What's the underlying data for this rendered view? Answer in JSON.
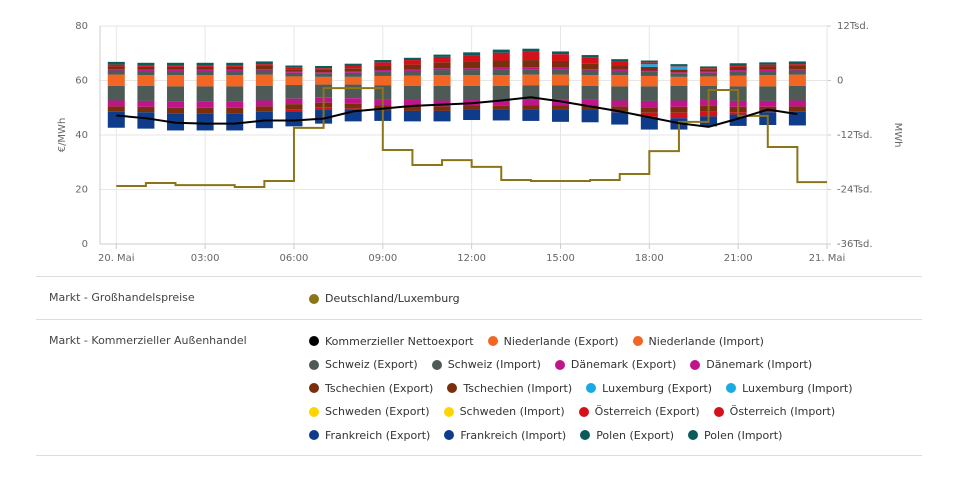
{
  "chart_data": {
    "type": "bar",
    "x": [
      0,
      1,
      2,
      3,
      4,
      5,
      6,
      7,
      8,
      9,
      10,
      11,
      12,
      13,
      14,
      15,
      16,
      17,
      18,
      19,
      20,
      21,
      22,
      23
    ],
    "xlim": [
      -0.55,
      24
    ],
    "xticks": [
      {
        "value": 0,
        "label": "20. Mai"
      },
      {
        "value": 3,
        "label": "03:00"
      },
      {
        "value": 6,
        "label": "06:00"
      },
      {
        "value": 9,
        "label": "09:00"
      },
      {
        "value": 12,
        "label": "12:00"
      },
      {
        "value": 15,
        "label": "15:00"
      },
      {
        "value": 18,
        "label": "18:00"
      },
      {
        "value": 21,
        "label": "21:00"
      },
      {
        "value": 24,
        "label": "21. Mai"
      }
    ],
    "ylabel": "€/MWh",
    "ylim": [
      0,
      80
    ],
    "yticks": [
      0,
      20,
      40,
      60,
      80
    ],
    "y2label": "MWh",
    "y2lim": [
      -36000,
      12000
    ],
    "y2ticks": [
      {
        "value": 12000,
        "label": "12Tsd."
      },
      0,
      {
        "value": -12000,
        "label": "-12Tsd."
      },
      {
        "value": -24000,
        "label": "-24Tsd."
      },
      {
        "value": -36000,
        "label": "-36Tsd."
      }
    ],
    "grid": true,
    "groups": [
      {
        "title": "Markt - Großhandelspreise",
        "series": [
          {
            "name": "Deutschland/Luxemburg",
            "type": "step",
            "color": "#8c7519",
            "values": [
              21.3,
              22.4,
              21.6,
              21.6,
              20.9,
              23.1,
              42.6,
              57.2,
              57.2,
              34.5,
              29,
              30.8,
              28.3,
              23.5,
              23.1,
              23.1,
              23.5,
              25.7,
              34.1,
              44.8,
              56.5,
              47,
              35.6,
              22.7
            ]
          }
        ]
      },
      {
        "title": "Markt - Kommerzieller Außenhandel",
        "series": [
          {
            "name": "Kommerzieller Nettoexport",
            "type": "line",
            "axis": "y2",
            "color": "#000000",
            "values": [
              -7700,
              -8300,
              -9300,
              -9500,
              -9500,
              -8800,
              -8800,
              -8400,
              -6800,
              -6200,
              -5600,
              -5300,
              -5000,
              -4400,
              -3700,
              -4600,
              -5700,
              -6800,
              -8100,
              -9400,
              -10200,
              -8400,
              -6400,
              -7400
            ]
          },
          {
            "name": "Niederlande (Export)",
            "type": "bar",
            "axis": "y2",
            "color": "#f26522",
            "values": [
              1300,
              1200,
              1200,
              1200,
              1200,
              1300,
              900,
              800,
              800,
              1000,
              1100,
              1200,
              1200,
              1200,
              1300,
              1300,
              1200,
              1200,
              1000,
              800,
              900,
              1100,
              1200,
              1300
            ]
          },
          {
            "name": "Niederlande (Import)",
            "type": "bar",
            "axis": "y2",
            "color": "#f26522",
            "values": [
              -1200,
              -1200,
              -1300,
              -1300,
              -1300,
              -1200,
              -1000,
              -900,
              -900,
              -1100,
              -1200,
              -1200,
              -1200,
              -1200,
              -1100,
              -1100,
              -1200,
              -1300,
              -1300,
              -1200,
              -1200,
              -1300,
              -1300,
              -1200
            ]
          },
          {
            "name": "Schweiz (Export)",
            "type": "bar",
            "axis": "y2",
            "color": "#4d5a55",
            "values": [
              900,
              900,
              900,
              900,
              900,
              900,
              800,
              800,
              900,
              1000,
              1000,
              1100,
              1100,
              1200,
              1200,
              1100,
              1000,
              900,
              900,
              800,
              800,
              900,
              900,
              900
            ]
          },
          {
            "name": "Schweiz (Import)",
            "type": "bar",
            "axis": "y2",
            "color": "#4d5a55",
            "values": [
              -3200,
              -3300,
              -3300,
              -3300,
              -3300,
              -3200,
              -3000,
              -2900,
              -3000,
              -3100,
              -3100,
              -3200,
              -3100,
              -3200,
              -3200,
              -3100,
              -3000,
              -3100,
              -3200,
              -3200,
              -3100,
              -3200,
              -3200,
              -3200
            ]
          },
          {
            "name": "Dänemark (Export)",
            "type": "bar",
            "axis": "y2",
            "color": "#c0158a",
            "values": [
              300,
              300,
              300,
              300,
              300,
              300,
              200,
              200,
              300,
              300,
              300,
              400,
              400,
              400,
              400,
              400,
              300,
              300,
              300,
              200,
              200,
              300,
              300,
              300
            ]
          },
          {
            "name": "Dänemark (Import)",
            "type": "bar",
            "axis": "y2",
            "color": "#c0158a",
            "values": [
              -1300,
              -1300,
              -1400,
              -1400,
              -1400,
              -1300,
              -1200,
              -1100,
              -1200,
              -1300,
              -1300,
              -1300,
              -1200,
              -1200,
              -1200,
              -1300,
              -1300,
              -1300,
              -1400,
              -1400,
              -1300,
              -1300,
              -1300,
              -1300
            ]
          },
          {
            "name": "Tschechien (Export)",
            "type": "bar",
            "axis": "y2",
            "color": "#7a2e0e",
            "values": [
              600,
              600,
              600,
              600,
              600,
              700,
              600,
              600,
              700,
              900,
              1100,
              1300,
              1500,
              1600,
              1600,
              1500,
              1300,
              1000,
              800,
              600,
              600,
              700,
              700,
              700
            ]
          },
          {
            "name": "Tschechien (Import)",
            "type": "bar",
            "axis": "y2",
            "color": "#7a2e0e",
            "values": [
              -1200,
              -1200,
              -1300,
              -1300,
              -1300,
              -1200,
              -1100,
              -1000,
              -1100,
              -1100,
              -1100,
              -1000,
              -900,
              -800,
              -800,
              -900,
              -1000,
              -1100,
              -1200,
              -1300,
              -1300,
              -1200,
              -1200,
              -1200
            ]
          },
          {
            "name": "Luxemburg (Export)",
            "type": "bar",
            "axis": "y2",
            "color": "#1aa9e0",
            "values": [
              0,
              0,
              0,
              0,
              0,
              0,
              0,
              0,
              0,
              0,
              0,
              0,
              0,
              0,
              0,
              0,
              0,
              0,
              600,
              700,
              0,
              0,
              0,
              0
            ]
          },
          {
            "name": "Luxemburg (Import)",
            "type": "bar",
            "axis": "y2",
            "color": "#1aa9e0",
            "values": [
              0,
              0,
              0,
              0,
              0,
              0,
              0,
              0,
              0,
              0,
              0,
              0,
              0,
              0,
              0,
              0,
              0,
              0,
              0,
              0,
              0,
              0,
              0,
              0
            ]
          },
          {
            "name": "Schweden (Export)",
            "type": "bar",
            "axis": "y2",
            "color": "#ffd500",
            "values": [
              0,
              0,
              0,
              0,
              0,
              0,
              0,
              0,
              0,
              0,
              0,
              0,
              0,
              0,
              0,
              0,
              0,
              0,
              0,
              0,
              0,
              0,
              0,
              0
            ]
          },
          {
            "name": "Schweden (Import)",
            "type": "bar",
            "axis": "y2",
            "color": "#ffd500",
            "values": [
              0,
              0,
              0,
              0,
              0,
              0,
              0,
              0,
              0,
              0,
              0,
              0,
              0,
              0,
              0,
              0,
              0,
              0,
              0,
              0,
              0,
              0,
              0,
              0
            ]
          },
          {
            "name": "Österreich (Export)",
            "type": "bar",
            "axis": "y2",
            "color": "#d4111a",
            "values": [
              400,
              400,
              400,
              400,
              400,
              400,
              300,
              300,
              500,
              800,
              1000,
              1200,
              1400,
              1700,
              1800,
              1500,
              1200,
              800,
              400,
              200,
              200,
              300,
              400,
              400
            ]
          },
          {
            "name": "Österreich (Import)",
            "type": "bar",
            "axis": "y2",
            "color": "#d4111a",
            "values": [
              0,
              0,
              0,
              0,
              0,
              0,
              -500,
              -600,
              -300,
              0,
              0,
              0,
              0,
              0,
              0,
              0,
              0,
              -200,
              -900,
              -1200,
              -1000,
              -500,
              0,
              0
            ]
          },
          {
            "name": "Frankreich (Export)",
            "type": "bar",
            "axis": "y2",
            "color": "#0e3c8a",
            "values": [
              0,
              0,
              0,
              0,
              0,
              0,
              0,
              0,
              0,
              0,
              0,
              0,
              0,
              0,
              0,
              0,
              0,
              0,
              0,
              0,
              0,
              0,
              0,
              0
            ]
          },
          {
            "name": "Frankreich (Import)",
            "type": "bar",
            "axis": "y2",
            "color": "#0e3c8a",
            "values": [
              -3500,
              -3600,
              -3700,
              -3700,
              -3700,
              -3600,
              -3300,
              -3000,
              -2500,
              -2300,
              -2300,
              -2300,
              -2300,
              -2400,
              -2600,
              -2700,
              -2700,
              -2700,
              -2800,
              -2500,
              -2200,
              -2500,
              -2800,
              -3000
            ]
          },
          {
            "name": "Polen (Export)",
            "type": "bar",
            "axis": "y2",
            "color": "#0c5a5a",
            "values": [
              600,
              500,
              500,
              500,
              500,
              600,
              500,
              500,
              500,
              500,
              500,
              500,
              600,
              700,
              700,
              600,
              600,
              500,
              400,
              300,
              400,
              500,
              500,
              600
            ]
          },
          {
            "name": "Polen (Import)",
            "type": "bar",
            "axis": "y2",
            "color": "#0c5a5a",
            "values": [
              0,
              0,
              0,
              0,
              0,
              0,
              0,
              0,
              0,
              0,
              0,
              0,
              0,
              0,
              0,
              0,
              0,
              0,
              0,
              0,
              0,
              0,
              0,
              0
            ]
          }
        ]
      }
    ]
  }
}
